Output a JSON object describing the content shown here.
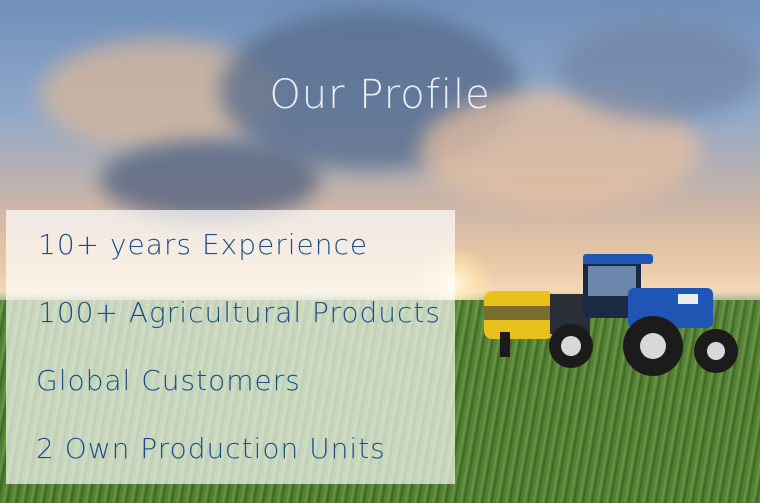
{
  "hero": {
    "title": "Our Profile",
    "stats": [
      "10+ years Experience",
      "100+ Agricultural Products",
      "Global Customers",
      "2 Own Production Units"
    ]
  },
  "colors": {
    "title_text": "#ffffff",
    "stat_text": "#1c4f86",
    "panel_bg": "rgba(255,255,255,0.68)",
    "tractor_body": "#1f56b5",
    "baler_body": "#e7c21d"
  },
  "icons": {
    "background": "farm-field-tractor-image"
  }
}
